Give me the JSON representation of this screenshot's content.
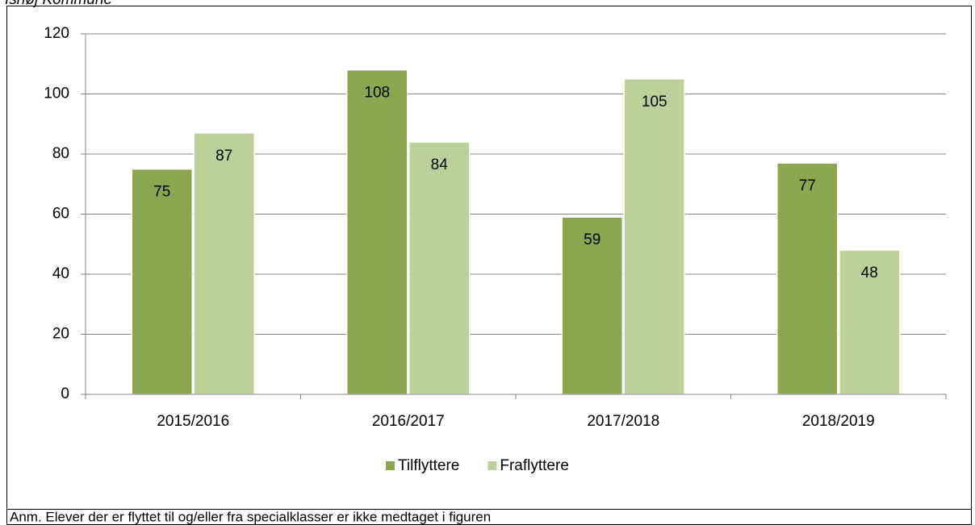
{
  "chart_data": {
    "type": "bar",
    "title": "Ishøj Kommune",
    "categories": [
      "2015/2016",
      "2016/2017",
      "2017/2018",
      "2018/2019"
    ],
    "series": [
      {
        "name": "Tilflyttere",
        "color": "#8aa64f",
        "values": [
          75,
          108,
          59,
          77
        ]
      },
      {
        "name": "Fraflyttere",
        "color": "#bcd09a",
        "values": [
          87,
          84,
          105,
          48
        ]
      }
    ],
    "ylim": [
      0,
      120
    ],
    "yticks": [
      0,
      20,
      40,
      60,
      80,
      100,
      120
    ],
    "grid": true,
    "legend": "bottom",
    "note": "Anm. Elever der er flyttet til og/eller fra specialklasser er ikke medtaget i figuren"
  }
}
